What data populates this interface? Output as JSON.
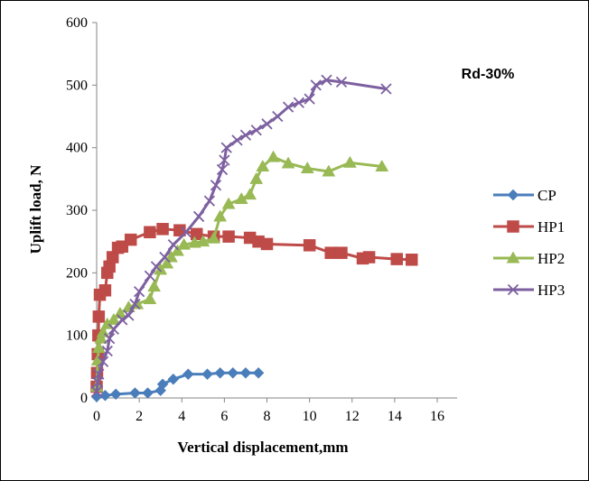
{
  "chart_data": {
    "type": "line",
    "title": "",
    "annotation": "Rd-30%",
    "xlabel": "Vertical displacement,mm",
    "ylabel": "Uplift load, N",
    "xlim": [
      0,
      16
    ],
    "ylim": [
      0,
      600
    ],
    "xticks": [
      0,
      2,
      4,
      6,
      8,
      10,
      12,
      14,
      16
    ],
    "yticks": [
      0,
      100,
      200,
      300,
      400,
      500,
      600
    ],
    "grid": false,
    "legend_position": "right",
    "series": [
      {
        "name": "CP",
        "color": "#4a7ebb",
        "marker": "diamond",
        "points": [
          [
            0,
            2
          ],
          [
            0.4,
            4
          ],
          [
            0.9,
            6
          ],
          [
            1.8,
            8
          ],
          [
            2.4,
            8
          ],
          [
            3.0,
            12
          ],
          [
            3.1,
            22
          ],
          [
            3.6,
            30
          ],
          [
            4.3,
            38
          ],
          [
            5.2,
            38
          ],
          [
            5.8,
            40
          ],
          [
            6.4,
            40
          ],
          [
            7.0,
            40
          ],
          [
            7.6,
            40
          ]
        ]
      },
      {
        "name": "HP1",
        "color": "#be4b48",
        "marker": "square",
        "points": [
          [
            0,
            18
          ],
          [
            0.02,
            40
          ],
          [
            0.05,
            70
          ],
          [
            0.08,
            100
          ],
          [
            0.1,
            130
          ],
          [
            0.15,
            165
          ],
          [
            0.4,
            172
          ],
          [
            0.5,
            200
          ],
          [
            0.6,
            210
          ],
          [
            0.75,
            225
          ],
          [
            1.0,
            240
          ],
          [
            1.2,
            242
          ],
          [
            1.6,
            253
          ],
          [
            2.5,
            265
          ],
          [
            3.1,
            270
          ],
          [
            3.9,
            268
          ],
          [
            4.7,
            262
          ],
          [
            5.5,
            258
          ],
          [
            6.2,
            258
          ],
          [
            7.2,
            256
          ],
          [
            7.6,
            250
          ],
          [
            8.0,
            246
          ],
          [
            10.0,
            244
          ],
          [
            11.0,
            232
          ],
          [
            11.5,
            232
          ],
          [
            12.5,
            223
          ],
          [
            12.8,
            225
          ],
          [
            14.1,
            222
          ],
          [
            14.8,
            221
          ]
        ]
      },
      {
        "name": "HP2",
        "color": "#98b954",
        "marker": "triangle",
        "points": [
          [
            0,
            18
          ],
          [
            0.05,
            60
          ],
          [
            0.1,
            80
          ],
          [
            0.2,
            95
          ],
          [
            0.3,
            105
          ],
          [
            0.5,
            118
          ],
          [
            0.8,
            125
          ],
          [
            1.1,
            135
          ],
          [
            1.5,
            145
          ],
          [
            1.9,
            150
          ],
          [
            2.5,
            158
          ],
          [
            2.7,
            178
          ],
          [
            3.0,
            205
          ],
          [
            3.3,
            215
          ],
          [
            3.5,
            225
          ],
          [
            3.8,
            235
          ],
          [
            4.1,
            245
          ],
          [
            4.6,
            248
          ],
          [
            5.0,
            250
          ],
          [
            5.5,
            255
          ],
          [
            5.8,
            290
          ],
          [
            6.2,
            310
          ],
          [
            6.8,
            318
          ],
          [
            7.2,
            325
          ],
          [
            7.5,
            350
          ],
          [
            7.8,
            370
          ],
          [
            8.3,
            385
          ],
          [
            9.0,
            375
          ],
          [
            9.9,
            367
          ],
          [
            10.9,
            362
          ],
          [
            11.9,
            376
          ],
          [
            13.4,
            370
          ]
        ]
      },
      {
        "name": "HP3",
        "color": "#7d60a0",
        "marker": "x",
        "points": [
          [
            0,
            10
          ],
          [
            0.05,
            25
          ],
          [
            0.1,
            38
          ],
          [
            0.3,
            58
          ],
          [
            0.5,
            75
          ],
          [
            0.6,
            95
          ],
          [
            0.8,
            110
          ],
          [
            1.2,
            125
          ],
          [
            1.5,
            132
          ],
          [
            1.8,
            150
          ],
          [
            2.0,
            170
          ],
          [
            2.5,
            195
          ],
          [
            2.8,
            210
          ],
          [
            3.2,
            225
          ],
          [
            3.6,
            245
          ],
          [
            4.2,
            265
          ],
          [
            4.8,
            290
          ],
          [
            5.3,
            315
          ],
          [
            5.6,
            340
          ],
          [
            5.9,
            365
          ],
          [
            6.0,
            380
          ],
          [
            6.1,
            400
          ],
          [
            6.6,
            412
          ],
          [
            7.0,
            420
          ],
          [
            7.5,
            428
          ],
          [
            8.0,
            438
          ],
          [
            8.5,
            450
          ],
          [
            9.0,
            465
          ],
          [
            9.5,
            472
          ],
          [
            10.0,
            478
          ],
          [
            10.3,
            500
          ],
          [
            10.8,
            508
          ],
          [
            11.5,
            505
          ],
          [
            13.6,
            494
          ]
        ]
      }
    ]
  }
}
